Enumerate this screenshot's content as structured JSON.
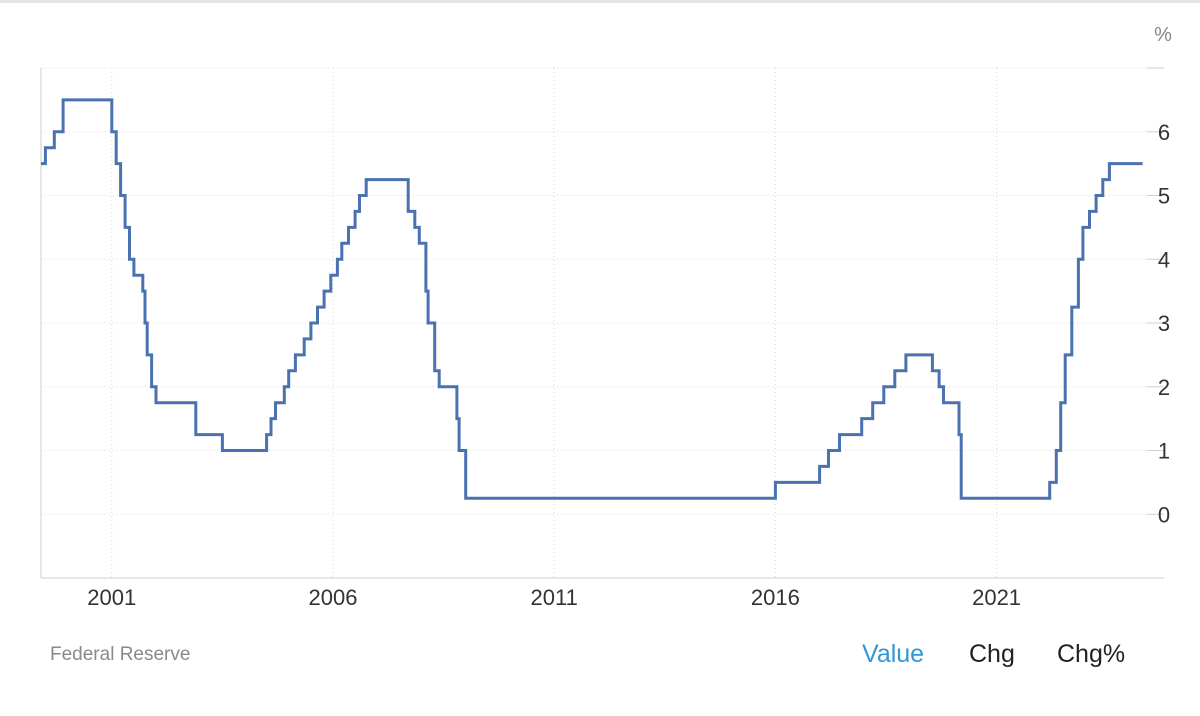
{
  "chart_data": {
    "type": "line",
    "step": true,
    "unit_label": "%",
    "xlim": [
      1999.4,
      2024.4
    ],
    "ylim": [
      -1,
      7
    ],
    "y_ticks": [
      0,
      1,
      2,
      3,
      4,
      5,
      6
    ],
    "x_ticks": [
      {
        "value": 2001,
        "label": "2001"
      },
      {
        "value": 2006,
        "label": "2006"
      },
      {
        "value": 2011,
        "label": "2011"
      },
      {
        "value": 2016,
        "label": "2016"
      },
      {
        "value": 2021,
        "label": "2021"
      }
    ],
    "grid": true,
    "line_color": "#4a72b0",
    "series": [
      {
        "points": [
          [
            1999.4,
            5.5
          ],
          [
            1999.5,
            5.75
          ],
          [
            1999.7,
            6.0
          ],
          [
            1999.9,
            6.5
          ],
          [
            2000.6,
            6.5
          ],
          [
            2001.0,
            6.0
          ],
          [
            2001.1,
            5.5
          ],
          [
            2001.2,
            5.0
          ],
          [
            2001.3,
            4.5
          ],
          [
            2001.4,
            4.0
          ],
          [
            2001.5,
            3.75
          ],
          [
            2001.7,
            3.5
          ],
          [
            2001.75,
            3.0
          ],
          [
            2001.8,
            2.5
          ],
          [
            2001.9,
            2.0
          ],
          [
            2002.0,
            1.75
          ],
          [
            2002.9,
            1.25
          ],
          [
            2003.5,
            1.0
          ],
          [
            2004.5,
            1.25
          ],
          [
            2004.6,
            1.5
          ],
          [
            2004.7,
            1.75
          ],
          [
            2004.9,
            2.0
          ],
          [
            2005.0,
            2.25
          ],
          [
            2005.15,
            2.5
          ],
          [
            2005.35,
            2.75
          ],
          [
            2005.5,
            3.0
          ],
          [
            2005.65,
            3.25
          ],
          [
            2005.8,
            3.5
          ],
          [
            2005.95,
            3.75
          ],
          [
            2006.1,
            4.0
          ],
          [
            2006.2,
            4.25
          ],
          [
            2006.35,
            4.5
          ],
          [
            2006.5,
            4.75
          ],
          [
            2006.6,
            5.0
          ],
          [
            2006.75,
            5.25
          ],
          [
            2007.7,
            4.75
          ],
          [
            2007.85,
            4.5
          ],
          [
            2007.95,
            4.25
          ],
          [
            2008.1,
            3.5
          ],
          [
            2008.15,
            3.0
          ],
          [
            2008.3,
            2.25
          ],
          [
            2008.4,
            2.0
          ],
          [
            2008.8,
            1.5
          ],
          [
            2008.85,
            1.0
          ],
          [
            2009.0,
            0.25
          ],
          [
            2016.0,
            0.5
          ],
          [
            2017.0,
            0.75
          ],
          [
            2017.2,
            1.0
          ],
          [
            2017.45,
            1.25
          ],
          [
            2017.95,
            1.5
          ],
          [
            2018.2,
            1.75
          ],
          [
            2018.45,
            2.0
          ],
          [
            2018.7,
            2.25
          ],
          [
            2018.95,
            2.5
          ],
          [
            2019.55,
            2.25
          ],
          [
            2019.7,
            2.0
          ],
          [
            2019.8,
            1.75
          ],
          [
            2020.15,
            1.25
          ],
          [
            2020.2,
            0.25
          ],
          [
            2022.2,
            0.5
          ],
          [
            2022.35,
            1.0
          ],
          [
            2022.45,
            1.75
          ],
          [
            2022.55,
            2.5
          ],
          [
            2022.7,
            3.25
          ],
          [
            2022.85,
            4.0
          ],
          [
            2022.95,
            4.5
          ],
          [
            2023.1,
            4.75
          ],
          [
            2023.25,
            5.0
          ],
          [
            2023.4,
            5.25
          ],
          [
            2023.55,
            5.5
          ],
          [
            2024.3,
            5.5
          ]
        ]
      }
    ]
  },
  "footer": {
    "source": "Federal Reserve",
    "toggles": [
      {
        "label": "Value",
        "active": true
      },
      {
        "label": "Chg",
        "active": false
      },
      {
        "label": "Chg%",
        "active": false
      }
    ]
  },
  "colors": {
    "accent": "#2f97d6",
    "grid": "#d8d8d8",
    "axis": "#cfcfcf",
    "tick_text": "#333333",
    "unit_text": "#888888"
  }
}
